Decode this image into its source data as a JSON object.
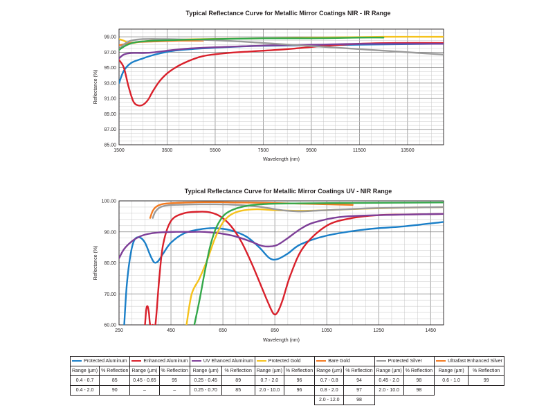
{
  "chart_data": [
    {
      "type": "line",
      "title": "Typical Reflectance Curve for Metallic Mirror Coatings NIR - IR Range",
      "xlabel": "Wavelength (nm)",
      "ylabel": "Reflectance (%)",
      "xlim": [
        1500,
        15000
      ],
      "ylim": [
        85,
        100
      ],
      "xticks": [
        "1500",
        "3500",
        "5500",
        "7500",
        "9500",
        "11500",
        "13500"
      ],
      "yticks": [
        "85.00",
        "87.00",
        "89.00",
        "91.00",
        "93.00",
        "95.00",
        "97.00",
        "99.00"
      ],
      "grid": true,
      "series": [
        {
          "name": "Protected Aluminum",
          "color": "#1a7fc8",
          "x": [
            1500,
            1700,
            2000,
            2400,
            3000,
            3800,
            5000,
            7000,
            9500,
            12000,
            15000
          ],
          "y": [
            93.0,
            94.6,
            95.6,
            96.1,
            96.7,
            97.2,
            97.5,
            97.8,
            97.9,
            98.0,
            98.1
          ]
        },
        {
          "name": "Enhanced Aluminum",
          "color": "#d9202b",
          "x": [
            1500,
            1700,
            1900,
            2100,
            2300,
            2500,
            2700,
            2900,
            3200,
            3600,
            4200,
            5000,
            6000,
            7000,
            8500,
            10000,
            11500,
            13000,
            15000
          ],
          "y": [
            96.0,
            95.0,
            92.5,
            90.6,
            90.1,
            90.2,
            90.8,
            91.9,
            93.3,
            94.5,
            95.6,
            96.5,
            96.9,
            97.1,
            97.4,
            97.8,
            98.1,
            98.2,
            98.2
          ]
        },
        {
          "name": "UV Enhanced Aluminum",
          "color": "#7e3f98",
          "x": [
            1500,
            1700,
            2000,
            2500,
            3000,
            3500,
            4500,
            6000,
            8000,
            10000,
            12000,
            15000
          ],
          "y": [
            96.2,
            96.7,
            96.9,
            96.9,
            97.0,
            97.2,
            97.5,
            97.7,
            97.9,
            98.0,
            98.1,
            98.1
          ]
        },
        {
          "name": "Protected Gold",
          "color": "#f5c21c",
          "x": [
            1500,
            1700,
            1900,
            2100,
            2500,
            3500,
            5000,
            7500,
            10000,
            12500,
            15000
          ],
          "y": [
            98.7,
            98.5,
            98.2,
            98.2,
            98.4,
            98.6,
            98.7,
            98.8,
            98.9,
            99.0,
            99.0
          ]
        },
        {
          "name": "Bare Gold",
          "color": "#f37a20",
          "x": [
            1500,
            1800,
            2200,
            3000,
            4000,
            5000
          ],
          "y": [
            97.9,
            98.1,
            98.3,
            98.4,
            98.5,
            98.5
          ]
        },
        {
          "name": "Protected Silver",
          "color": "#9a9a9a",
          "x": [
            1500,
            1700,
            2000,
            2500,
            3500,
            5000,
            6500,
            8000,
            9500,
            11000,
            12500,
            14000,
            15000
          ],
          "y": [
            97.4,
            98.0,
            98.5,
            98.7,
            98.7,
            98.6,
            98.4,
            98.1,
            97.8,
            97.5,
            97.2,
            96.9,
            96.7
          ]
        },
        {
          "name": "Ultrafast Enhanced Silver",
          "color": "#34a84a",
          "x": [
            1500,
            1800,
            2200,
            3000,
            4000,
            5500,
            7500,
            9500,
            11500,
            12500
          ],
          "y": [
            97.3,
            97.9,
            98.3,
            98.5,
            98.6,
            98.7,
            98.8,
            98.8,
            98.9,
            98.9
          ]
        }
      ]
    },
    {
      "type": "line",
      "title": "Typical Reflectance Curve for Metallic Mirror Coatings UV - NIR Range",
      "xlabel": "Wavelength (nm)",
      "ylabel": "Reflectance (%)",
      "xlim": [
        250,
        1500
      ],
      "ylim": [
        60,
        100
      ],
      "xticks": [
        "250",
        "450",
        "650",
        "850",
        "1050",
        "1250",
        "1450"
      ],
      "yticks": [
        "60.00",
        "70.00",
        "80.00",
        "90.00",
        "100.00"
      ],
      "grid": true,
      "series": [
        {
          "name": "Protected Aluminum",
          "color": "#1a7fc8",
          "x": [
            270,
            280,
            295,
            310,
            330,
            350,
            370,
            385,
            400,
            420,
            450,
            500,
            560,
            620,
            680,
            740,
            790,
            830,
            860,
            900,
            950,
            1050,
            1200,
            1350,
            1500
          ],
          "y": [
            60,
            73,
            83,
            87.5,
            88.2,
            86.5,
            82.5,
            80.2,
            80.5,
            83,
            86.5,
            89.5,
            90.8,
            91.2,
            90.5,
            88.5,
            85,
            81.5,
            81.2,
            83,
            86,
            88.8,
            90.8,
            91.8,
            93.2
          ]
        },
        {
          "name": "Enhanced Aluminum",
          "color": "#d9202b",
          "x": [
            350,
            355,
            360,
            365,
            370,
            380,
            390,
            405,
            420,
            450,
            500,
            560,
            600,
            640,
            680,
            720,
            760,
            800,
            825,
            845,
            860,
            880,
            910,
            960,
            1050,
            1150,
            1250,
            1350,
            1500
          ],
          "y": [
            60,
            65,
            66,
            64,
            60,
            60,
            60,
            75,
            86,
            93.5,
            96,
            96.5,
            96.3,
            95,
            92,
            87,
            80,
            72,
            67,
            63.6,
            64,
            68,
            76,
            85,
            92,
            94.5,
            95.4,
            95.6,
            95.8
          ]
        },
        {
          "name": "UV Enhanced Aluminum",
          "color": "#7e3f98",
          "x": [
            250,
            270,
            300,
            330,
            360,
            400,
            460,
            520,
            580,
            640,
            700,
            760,
            800,
            830,
            860,
            900,
            950,
            1000,
            1100,
            1250,
            1500
          ],
          "y": [
            81.5,
            84.5,
            87,
            88.5,
            89.3,
            89.8,
            90,
            90,
            90,
            89.5,
            88.5,
            86.8,
            85.5,
            85.3,
            85.8,
            88,
            91,
            93,
            94.8,
            95.4,
            95.8
          ]
        },
        {
          "name": "Protected Gold",
          "color": "#f5c21c",
          "x": [
            510,
            530,
            560,
            590,
            620,
            650,
            680,
            720,
            780,
            850,
            950,
            1050,
            1200,
            1350,
            1500
          ],
          "y": [
            60,
            70,
            75,
            81,
            88,
            93,
            95.5,
            96.8,
            97.3,
            97,
            96.8,
            97,
            97.5,
            97.8,
            98
          ]
        },
        {
          "name": "Bare Gold",
          "color": "#f37a20",
          "x": [
            370,
            380,
            395,
            420,
            460,
            520,
            580,
            640,
            700,
            800,
            900,
            1000,
            1100,
            1150
          ],
          "y": [
            94.5,
            96.8,
            98.2,
            99,
            99.3,
            99.5,
            99.6,
            99.6,
            99.5,
            99.4,
            99.2,
            99,
            98.8,
            98.7
          ]
        },
        {
          "name": "Protected Silver",
          "color": "#9a9a9a",
          "x": [
            380,
            390,
            410,
            440,
            500,
            560,
            620,
            680,
            740,
            800,
            860,
            900,
            950,
            1000,
            1100,
            1250,
            1500
          ],
          "y": [
            94.5,
            96.5,
            98,
            98.6,
            98.8,
            98.9,
            98.9,
            98.8,
            98.5,
            98,
            97.2,
            96.8,
            96.6,
            96.8,
            97.2,
            97.7,
            98
          ]
        },
        {
          "name": "Ultrafast Enhanced Silver",
          "color": "#34a84a",
          "x": [
            540,
            560,
            580,
            600,
            620,
            640,
            660,
            690,
            730,
            780,
            850,
            950,
            1100,
            1300,
            1500
          ],
          "y": [
            60,
            68,
            77,
            85,
            90.5,
            93.8,
            95.8,
            97.2,
            98.2,
            98.8,
            99.1,
            99.2,
            99.3,
            99.4,
            99.5
          ]
        }
      ]
    }
  ],
  "legend_table": {
    "coatings": [
      {
        "name": "Protected Aluminum",
        "color": "#1a7fc8",
        "col1": "Range (µm)",
        "col2": "% Reflection",
        "rows": [
          [
            "0.4 - 0.7",
            "85"
          ],
          [
            "0.4 - 2.0",
            "90"
          ],
          [
            "",
            ""
          ]
        ]
      },
      {
        "name": "Enhanced Aluminum",
        "color": "#d9202b",
        "col1": "Range (µm)",
        "col2": "% Reflection",
        "rows": [
          [
            "0.45 - 0.65",
            "95"
          ],
          [
            "–",
            "–"
          ],
          [
            "",
            ""
          ]
        ]
      },
      {
        "name": "UV Ehanced Aluminum",
        "color": "#7e3f98",
        "col1": "Range (µm)",
        "col2": "% Reflection",
        "rows": [
          [
            "0.25 - 0.45",
            "89"
          ],
          [
            "0.25 - 0.70",
            "85"
          ],
          [
            "",
            ""
          ]
        ]
      },
      {
        "name": "Protected Gold",
        "color": "#f5c21c",
        "col1": "Range (µm)",
        "col2": "% Reflection",
        "rows": [
          [
            "0.7 - 2.0",
            "96"
          ],
          [
            "2.0 - 10.0",
            "96"
          ],
          [
            "",
            ""
          ]
        ]
      },
      {
        "name": "Bare Gold",
        "color": "#f37a20",
        "col1": "Range (µm)",
        "col2": "% Reflection",
        "rows": [
          [
            "0.7 - 0.8",
            "94"
          ],
          [
            "0.8 - 2.0",
            "97"
          ],
          [
            "2.0 - 12.0",
            "98"
          ]
        ]
      },
      {
        "name": "Protected Silver",
        "color": "#9a9a9a",
        "col1": "Range (µm)",
        "col2": "% Reflection",
        "rows": [
          [
            "0.45 - 2.0",
            "98"
          ],
          [
            "2.0 - 10.0",
            "98"
          ],
          [
            "",
            ""
          ]
        ]
      },
      {
        "name": "Ultrafast Enhanced Silver",
        "color": "#f37a20",
        "col1": "Range (µm)",
        "col2": "% Reflection",
        "rows": [
          [
            "0.6 - 1.0",
            "99"
          ],
          [
            "",
            ""
          ],
          [
            "",
            ""
          ]
        ]
      }
    ]
  }
}
